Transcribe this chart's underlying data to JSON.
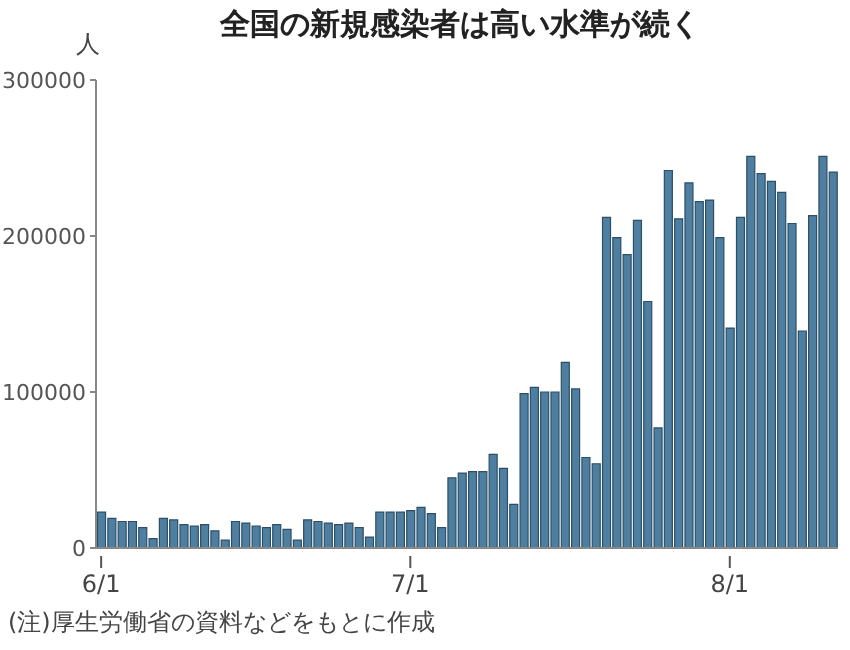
{
  "chart_data": {
    "type": "bar",
    "title": "全国の新規感染者は高い水準が続く",
    "ylabel": "人",
    "categories": [
      "6/1",
      null,
      null,
      null,
      null,
      null,
      null,
      null,
      null,
      null,
      null,
      null,
      null,
      null,
      null,
      null,
      null,
      null,
      null,
      null,
      null,
      null,
      null,
      null,
      null,
      null,
      null,
      null,
      null,
      null,
      "7/1",
      null,
      null,
      null,
      null,
      null,
      null,
      null,
      null,
      null,
      null,
      null,
      null,
      null,
      null,
      null,
      null,
      null,
      null,
      null,
      null,
      null,
      null,
      null,
      null,
      null,
      null,
      null,
      null,
      null,
      null,
      "8/1",
      null,
      null,
      null,
      null,
      null,
      null,
      null,
      null,
      null,
      null
    ],
    "values": [
      23000,
      19000,
      17000,
      17000,
      13000,
      6000,
      19000,
      18000,
      15000,
      14000,
      15000,
      11000,
      5000,
      17000,
      16000,
      14000,
      13000,
      15000,
      12000,
      5000,
      18000,
      17000,
      16000,
      15000,
      16000,
      13000,
      7000,
      23000,
      23000,
      23000,
      24000,
      26000,
      22000,
      13000,
      45000,
      48000,
      49000,
      49000,
      60000,
      51000,
      28000,
      99000,
      103000,
      100000,
      100000,
      119000,
      102000,
      58000,
      54000,
      212000,
      199000,
      188000,
      210000,
      158000,
      77000,
      242000,
      211000,
      234000,
      222000,
      223000,
      199000,
      141000,
      212000,
      251000,
      240000,
      235000,
      228000,
      208000,
      139000,
      213000,
      251000,
      241000
    ],
    "color": "#4f7fa0",
    "ylim": [
      0,
      300000
    ],
    "yticks": [
      0,
      100000,
      200000,
      300000
    ],
    "grid": false,
    "annotations": [
      "(注)厚生労働省の資料などをもとに作成"
    ]
  }
}
